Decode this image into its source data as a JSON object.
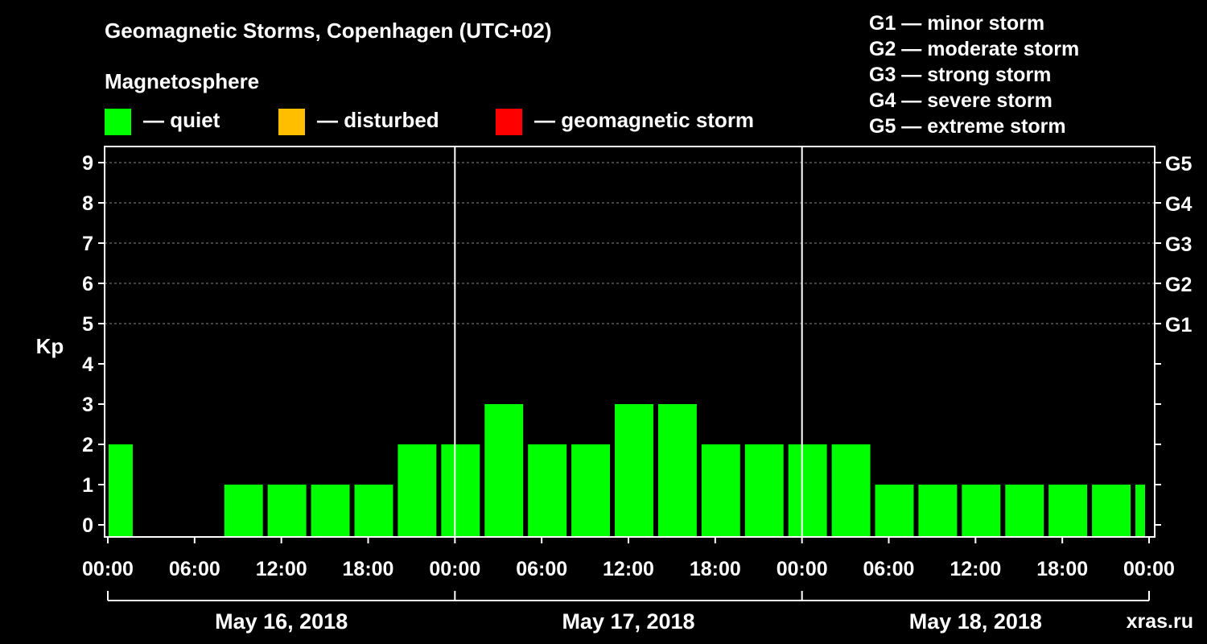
{
  "title": "Geomagnetic Storms, Copenhagen (UTC+02)",
  "legend": {
    "title": "Magnetosphere",
    "items": [
      {
        "label": "— quiet",
        "color": "#00ff00"
      },
      {
        "label": "— disturbed",
        "color": "#ffbf00"
      },
      {
        "label": "— geomagnetic storm",
        "color": "#ff0000"
      }
    ]
  },
  "storm_levels": [
    "G1 — minor storm",
    "G2 — moderate storm",
    "G3 — strong storm",
    "G4 — severe storm",
    "G5 — extreme storm"
  ],
  "watermark": "xras.ru",
  "chart_data": {
    "type": "bar",
    "title": "Geomagnetic Storms, Copenhagen (UTC+02)",
    "ylabel": "Kp",
    "ylim": [
      0,
      9
    ],
    "y_ticks": [
      "0",
      "1",
      "2",
      "3",
      "4",
      "5",
      "6",
      "7",
      "8",
      "9"
    ],
    "right_axis_labels": [
      {
        "kp": 5,
        "label": "G1"
      },
      {
        "kp": 6,
        "label": "G2"
      },
      {
        "kp": 7,
        "label": "G3"
      },
      {
        "kp": 8,
        "label": "G4"
      },
      {
        "kp": 9,
        "label": "G5"
      }
    ],
    "x_range_hours": [
      0,
      72
    ],
    "x_ticks": [
      "00:00",
      "06:00",
      "12:00",
      "18:00",
      "00:00",
      "06:00",
      "12:00",
      "18:00",
      "00:00",
      "06:00",
      "12:00",
      "18:00",
      "00:00"
    ],
    "days": [
      "May 16, 2018",
      "May 17, 2018",
      "May 18, 2018"
    ],
    "grid": "dashed horizontal at Kp 5–9",
    "bars": [
      {
        "start": "May 16, 2018 00:00",
        "end": "May 16, 2018 02:00",
        "kp": 2,
        "level": "quiet"
      },
      {
        "start": "May 16, 2018 02:00",
        "end": "May 16, 2018 05:00",
        "kp": 0,
        "level": "quiet"
      },
      {
        "start": "May 16, 2018 05:00",
        "end": "May 16, 2018 08:00",
        "kp": 0,
        "level": "quiet"
      },
      {
        "start": "May 16, 2018 08:00",
        "end": "May 16, 2018 11:00",
        "kp": 1,
        "level": "quiet"
      },
      {
        "start": "May 16, 2018 11:00",
        "end": "May 16, 2018 14:00",
        "kp": 1,
        "level": "quiet"
      },
      {
        "start": "May 16, 2018 14:00",
        "end": "May 16, 2018 17:00",
        "kp": 1,
        "level": "quiet"
      },
      {
        "start": "May 16, 2018 17:00",
        "end": "May 16, 2018 20:00",
        "kp": 1,
        "level": "quiet"
      },
      {
        "start": "May 16, 2018 20:00",
        "end": "May 16, 2018 23:00",
        "kp": 2,
        "level": "quiet"
      },
      {
        "start": "May 16, 2018 23:00",
        "end": "May 17, 2018 02:00",
        "kp": 2,
        "level": "quiet"
      },
      {
        "start": "May 17, 2018 02:00",
        "end": "May 17, 2018 05:00",
        "kp": 3,
        "level": "quiet"
      },
      {
        "start": "May 17, 2018 05:00",
        "end": "May 17, 2018 08:00",
        "kp": 2,
        "level": "quiet"
      },
      {
        "start": "May 17, 2018 08:00",
        "end": "May 17, 2018 11:00",
        "kp": 2,
        "level": "quiet"
      },
      {
        "start": "May 17, 2018 11:00",
        "end": "May 17, 2018 14:00",
        "kp": 3,
        "level": "quiet"
      },
      {
        "start": "May 17, 2018 14:00",
        "end": "May 17, 2018 17:00",
        "kp": 3,
        "level": "quiet"
      },
      {
        "start": "May 17, 2018 17:00",
        "end": "May 17, 2018 20:00",
        "kp": 2,
        "level": "quiet"
      },
      {
        "start": "May 17, 2018 20:00",
        "end": "May 17, 2018 23:00",
        "kp": 2,
        "level": "quiet"
      },
      {
        "start": "May 17, 2018 23:00",
        "end": "May 18, 2018 02:00",
        "kp": 2,
        "level": "quiet"
      },
      {
        "start": "May 18, 2018 02:00",
        "end": "May 18, 2018 05:00",
        "kp": 2,
        "level": "quiet"
      },
      {
        "start": "May 18, 2018 05:00",
        "end": "May 18, 2018 08:00",
        "kp": 1,
        "level": "quiet"
      },
      {
        "start": "May 18, 2018 08:00",
        "end": "May 18, 2018 11:00",
        "kp": 1,
        "level": "quiet"
      },
      {
        "start": "May 18, 2018 11:00",
        "end": "May 18, 2018 14:00",
        "kp": 1,
        "level": "quiet"
      },
      {
        "start": "May 18, 2018 14:00",
        "end": "May 18, 2018 17:00",
        "kp": 1,
        "level": "quiet"
      },
      {
        "start": "May 18, 2018 17:00",
        "end": "May 18, 2018 20:00",
        "kp": 1,
        "level": "quiet"
      },
      {
        "start": "May 18, 2018 20:00",
        "end": "May 18, 2018 23:00",
        "kp": 1,
        "level": "quiet"
      },
      {
        "start": "May 18, 2018 23:00",
        "end": "May 19, 2018 00:00",
        "kp": 1,
        "level": "quiet"
      }
    ]
  }
}
